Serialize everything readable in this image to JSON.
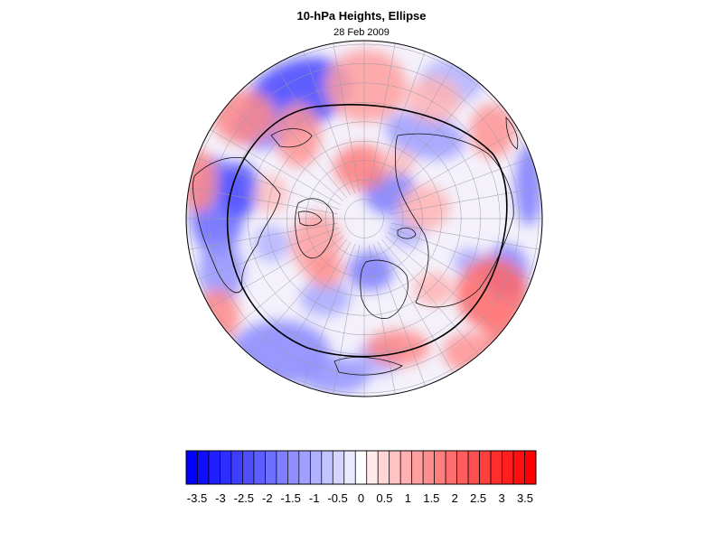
{
  "title": "10-hPa Heights, Ellipse",
  "subtitle": "28 Feb 2009",
  "map": {
    "projection": "polar stereographic (north pole)",
    "field": "10-hPa height anomaly (standardized)",
    "overlay": "black ellipse fit to polar vortex",
    "coastlines": true,
    "graticule": true
  },
  "colorbar": {
    "tick_labels": [
      "-3.5",
      "-3",
      "-2.5",
      "-2",
      "-1.5",
      "-1",
      "-0.5",
      "0",
      "0.5",
      "1",
      "1.5",
      "2",
      "2.5",
      "3",
      "3.5"
    ],
    "min": -4,
    "max": 4,
    "step": 0.25,
    "neg_color": "#0000ff",
    "mid_color": "#ffffff",
    "pos_color": "#ff0000"
  }
}
